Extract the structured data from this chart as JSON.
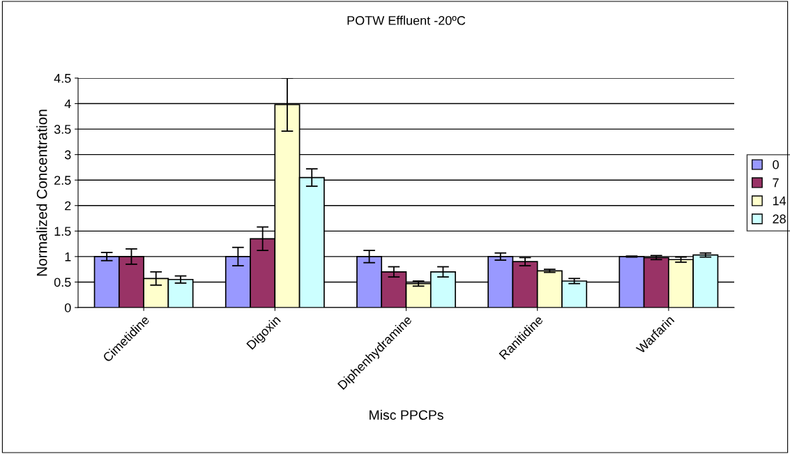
{
  "chart_data": {
    "type": "bar",
    "title": "POTW Effluent -20ºC",
    "xlabel": "Misc PPCPs",
    "ylabel": "Normalized Concentration",
    "categories": [
      "Cimetidine",
      "Digoxin",
      "Diphenhydramine",
      "Ranitidine",
      "Warfarin"
    ],
    "series": [
      {
        "name": "0",
        "color": "#9999ff",
        "values": [
          1.0,
          1.0,
          1.0,
          1.0,
          1.0
        ],
        "errors": [
          0.08,
          0.18,
          0.12,
          0.07,
          0.01
        ]
      },
      {
        "name": "7",
        "color": "#993366",
        "values": [
          1.0,
          1.35,
          0.7,
          0.9,
          0.98
        ],
        "errors": [
          0.15,
          0.23,
          0.1,
          0.08,
          0.04
        ]
      },
      {
        "name": "14",
        "color": "#ffffcc",
        "values": [
          0.57,
          3.98,
          0.47,
          0.72,
          0.94
        ],
        "errors": [
          0.13,
          0.52,
          0.05,
          0.03,
          0.05
        ]
      },
      {
        "name": "28",
        "color": "#ccffff",
        "values": [
          0.55,
          2.55,
          0.7,
          0.52,
          1.03
        ],
        "errors": [
          0.07,
          0.17,
          0.1,
          0.05,
          0.04
        ]
      }
    ],
    "ylim": [
      0,
      4.5
    ],
    "yticks": [
      0,
      0.5,
      1,
      1.5,
      2,
      2.5,
      3,
      3.5,
      4,
      4.5
    ],
    "grid": "y",
    "legend": "right"
  }
}
